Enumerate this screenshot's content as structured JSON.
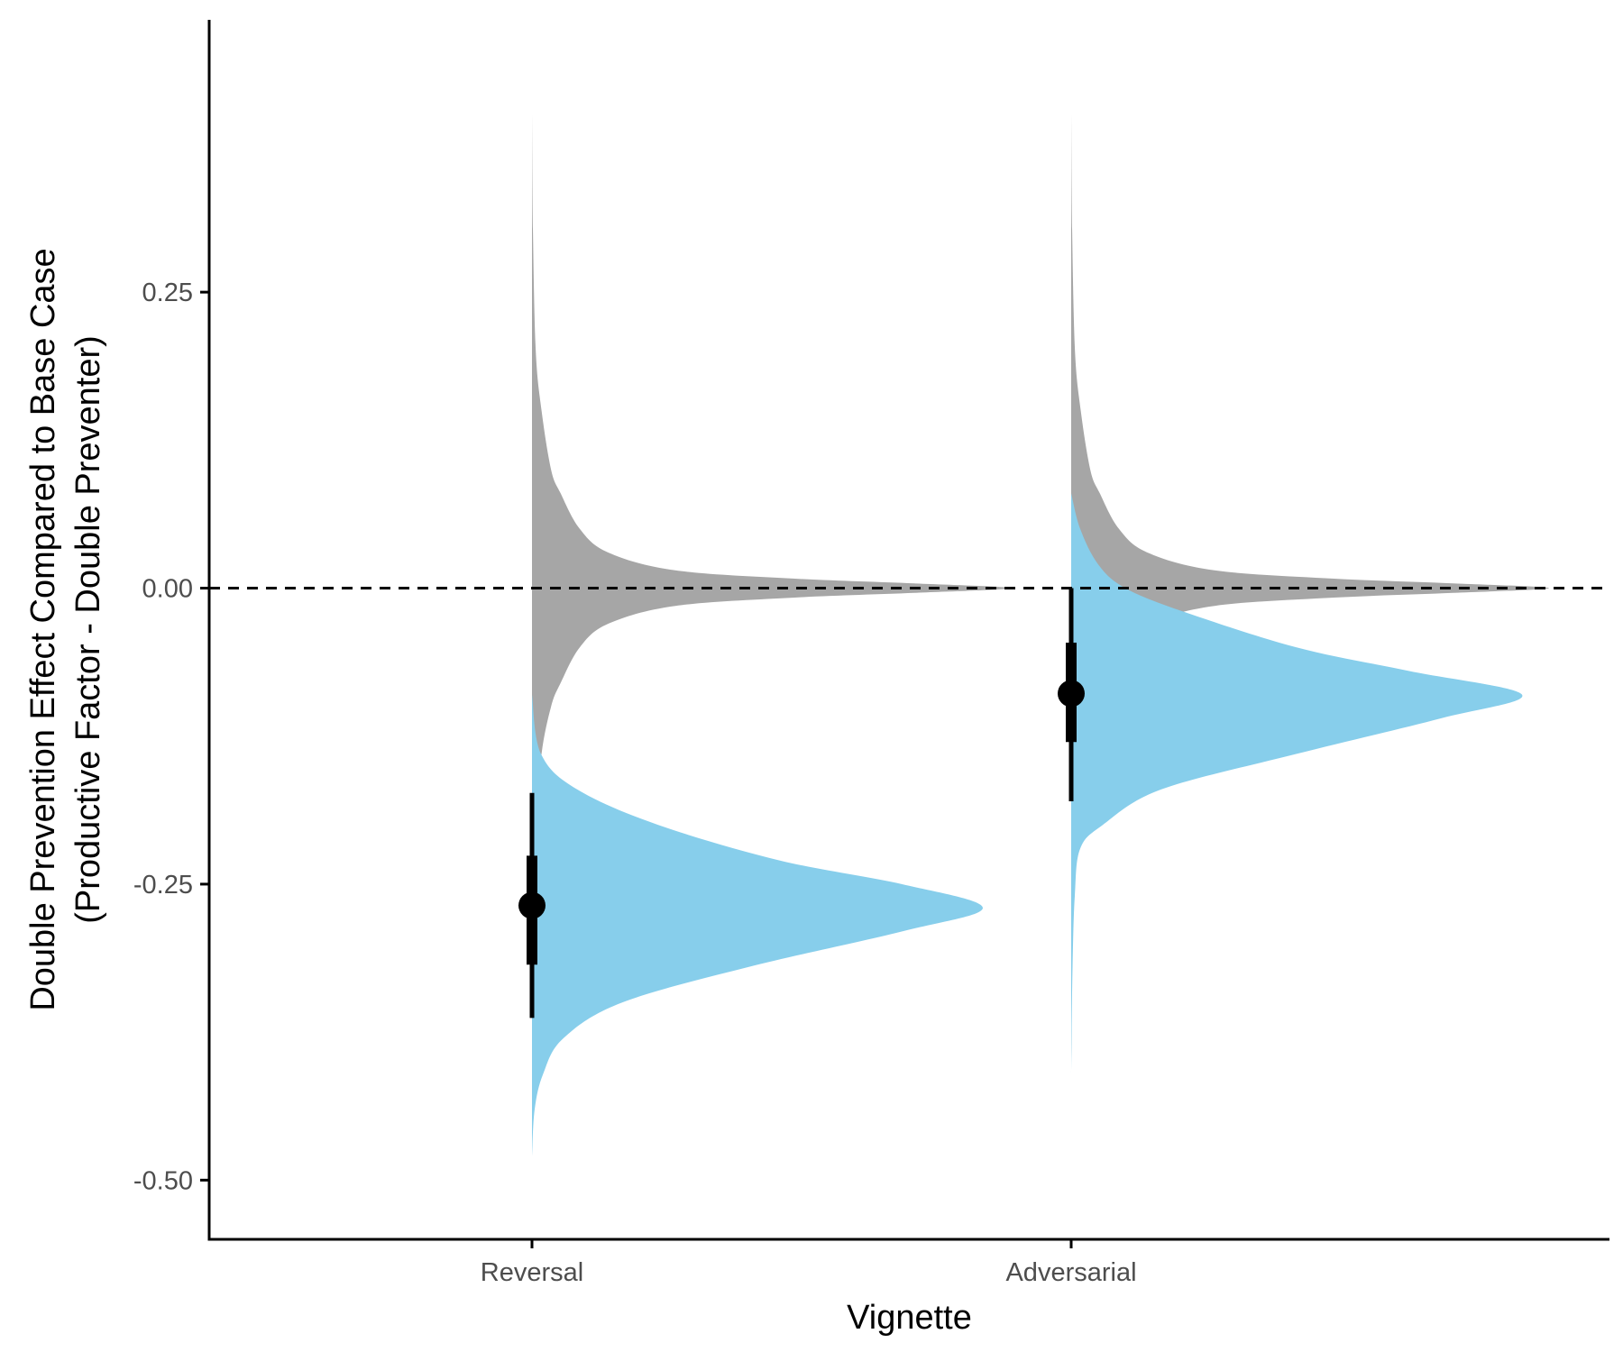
{
  "chart_data": {
    "type": "half-violin",
    "title": "",
    "xlabel": "Vignette",
    "ylabel": [
      "Double Prevention Effect Compared to Base Case",
      "(Productive Factor - Double Preventer)"
    ],
    "ylim": [
      -0.55,
      0.48
    ],
    "y_ticks": [
      0.25,
      0.0,
      -0.25,
      -0.5
    ],
    "y_tick_labels": [
      "0.25",
      "0.00",
      "-0.25",
      "-0.50"
    ],
    "categories": [
      "Reversal",
      "Adversarial"
    ],
    "reference_line": {
      "y": 0,
      "style": "dashed"
    },
    "grid": false,
    "legend": "none",
    "colors": {
      "prior": "#a6a6a6",
      "posterior": "#87ceeb",
      "point": "#000000"
    },
    "prior_density": {
      "center": 0.0,
      "y": [
        0.4,
        0.3,
        0.2,
        0.15,
        0.1,
        0.08,
        0.05,
        0.03,
        0.015,
        0.008,
        0.004,
        0.0,
        -0.004,
        -0.008,
        -0.015,
        -0.03,
        -0.05,
        -0.08,
        -0.1,
        -0.14,
        -0.2,
        -0.3,
        -0.4
      ],
      "d": [
        0.0,
        0.002,
        0.008,
        0.02,
        0.04,
        0.06,
        0.1,
        0.16,
        0.3,
        0.55,
        0.8,
        1.0,
        0.8,
        0.55,
        0.3,
        0.16,
        0.1,
        0.06,
        0.04,
        0.02,
        0.008,
        0.002,
        0.0
      ]
    },
    "series": [
      {
        "category": "Reversal",
        "posterior": {
          "y": [
            -0.09,
            -0.14,
            -0.17,
            -0.2,
            -0.23,
            -0.25,
            -0.27,
            -0.29,
            -0.32,
            -0.35,
            -0.38,
            -0.41,
            -0.44,
            -0.48
          ],
          "d": [
            0.0,
            0.02,
            0.1,
            0.28,
            0.55,
            0.82,
            1.0,
            0.82,
            0.48,
            0.2,
            0.07,
            0.025,
            0.006,
            0.0
          ]
        },
        "point_estimate": -0.268,
        "inner_interval": [
          -0.318,
          -0.226
        ],
        "outer_interval": [
          -0.363,
          -0.173
        ]
      },
      {
        "category": "Adversarial",
        "posterior": {
          "y": [
            0.08,
            0.05,
            0.02,
            0.0,
            -0.02,
            -0.05,
            -0.07,
            -0.09,
            -0.11,
            -0.14,
            -0.17,
            -0.2,
            -0.22,
            -0.26,
            -0.32,
            -0.41
          ],
          "d": [
            0.0,
            0.02,
            0.06,
            0.12,
            0.25,
            0.5,
            0.75,
            1.0,
            0.82,
            0.5,
            0.2,
            0.07,
            0.02,
            0.008,
            0.003,
            0.0
          ]
        },
        "point_estimate": -0.089,
        "inner_interval": [
          -0.13,
          -0.046
        ],
        "outer_interval": [
          -0.18,
          0.0
        ]
      }
    ]
  }
}
